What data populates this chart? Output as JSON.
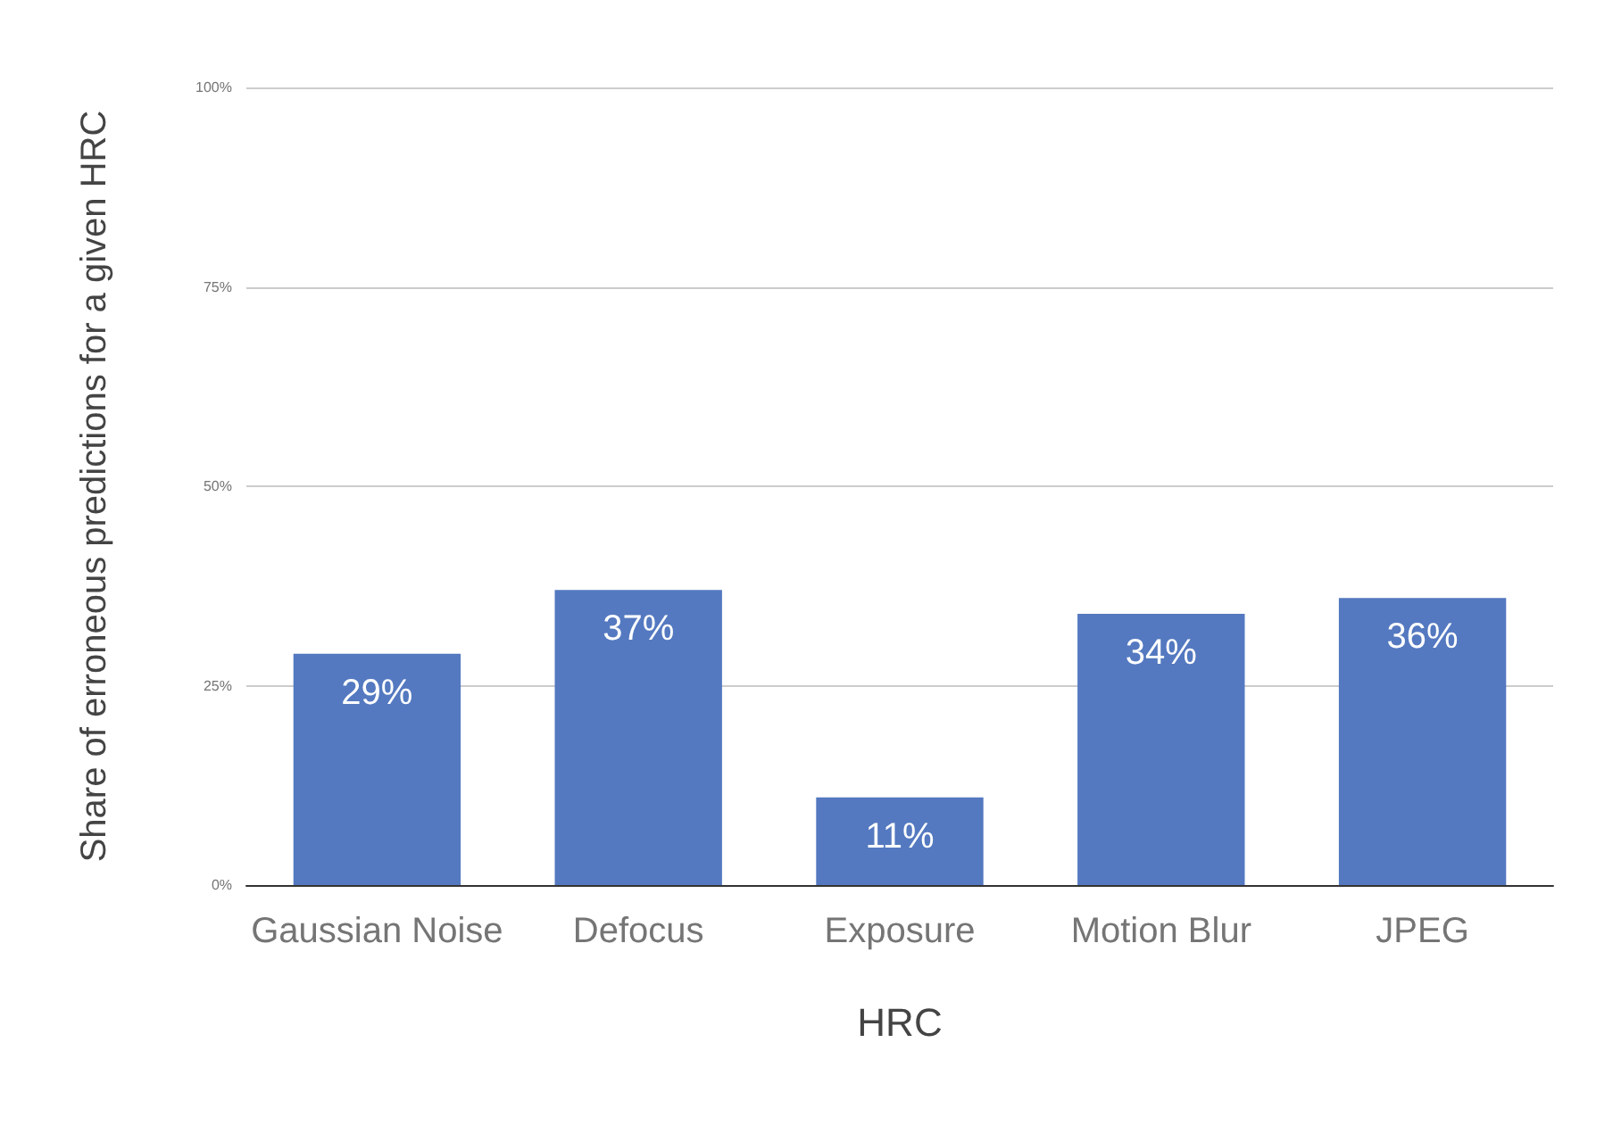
{
  "chart_data": {
    "type": "bar",
    "xlabel": "HRC",
    "ylabel": "Share of erroneous predictions for a given HRC",
    "categories": [
      "Gaussian Noise",
      "Defocus",
      "Exposure",
      "Motion Blur",
      "JPEG"
    ],
    "values": [
      29,
      37,
      11,
      34,
      36
    ],
    "value_labels": [
      "29%",
      "37%",
      "11%",
      "34%",
      "36%"
    ],
    "color": "#5479c0",
    "ylim": [
      0,
      100
    ],
    "yticks": [
      {
        "value": 0,
        "label": "0%"
      },
      {
        "value": 25,
        "label": "25%"
      },
      {
        "value": 50,
        "label": "50%"
      },
      {
        "value": 75,
        "label": "75%"
      },
      {
        "value": 100,
        "label": "100%"
      }
    ],
    "grid": "y"
  }
}
